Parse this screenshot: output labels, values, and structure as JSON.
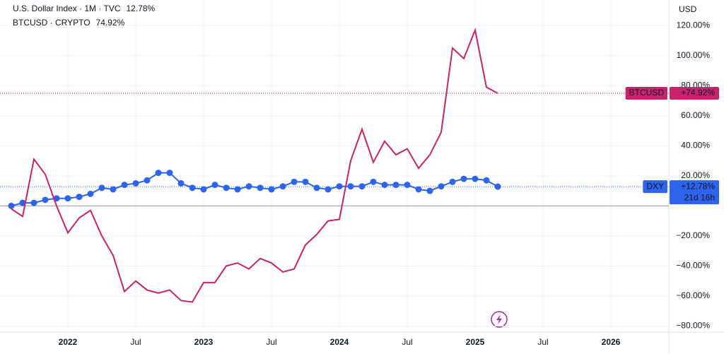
{
  "chart_data": {
    "type": "line",
    "currency": "USD",
    "categories": [
      null,
      null,
      null,
      null,
      null,
      "2022",
      null,
      null,
      null,
      null,
      null,
      "Jul",
      null,
      null,
      null,
      null,
      null,
      "2023",
      null,
      null,
      null,
      null,
      null,
      "Jul",
      null,
      null,
      null,
      null,
      null,
      "2024",
      null,
      null,
      null,
      null,
      null,
      "Jul",
      null,
      null,
      null,
      null,
      null,
      "2025",
      null,
      null,
      null,
      null,
      null,
      "Jul",
      null,
      null,
      null,
      null,
      null,
      "2026",
      null,
      null,
      null,
      null,
      null
    ],
    "ylim": [
      -84,
      137
    ],
    "yticks": [
      {
        "value": 120,
        "label": "120.00%"
      },
      {
        "value": 100,
        "label": "100.00%"
      },
      {
        "value": 80,
        "label": "80.00%"
      },
      {
        "value": 60,
        "label": "60.00%"
      },
      {
        "value": 40,
        "label": "40.00%"
      },
      {
        "value": 20,
        "label": "20.00%"
      },
      {
        "value": -20,
        "label": "−20.00%"
      },
      {
        "value": -40,
        "label": "−40.00%"
      },
      {
        "value": -60,
        "label": "−60.00%"
      },
      {
        "value": -80,
        "label": "−80.00%"
      }
    ],
    "grid": true,
    "series": [
      {
        "name": "U.S. Dollar Index · 1M · TVC",
        "tag": "DXY",
        "legend_value": "12.78%",
        "countdown": "21d 16h",
        "color": "#2e63eb",
        "markers": true,
        "values": [
          0,
          2,
          2,
          4,
          5,
          5,
          6,
          8,
          12,
          11,
          14,
          15,
          17,
          22,
          22,
          15,
          12,
          11,
          14,
          12,
          11,
          13,
          12,
          11,
          13,
          16,
          16,
          12,
          11,
          13,
          13,
          13,
          16,
          14,
          14,
          14,
          11,
          10,
          13,
          16,
          18,
          18,
          17,
          12.78,
          null,
          null,
          null,
          null,
          null,
          null,
          null,
          null,
          null,
          null,
          null,
          null,
          null,
          null,
          null
        ],
        "value_labels": [
          null,
          null,
          null,
          null,
          null,
          null,
          null,
          null,
          null,
          null,
          null,
          null,
          null,
          null,
          null,
          null,
          null,
          null,
          null,
          null,
          null,
          null,
          null,
          null,
          null,
          null,
          null,
          null,
          null,
          null,
          null,
          null,
          null,
          null,
          null,
          null,
          null,
          null,
          null,
          null,
          null,
          null,
          null,
          "+12.78%",
          null,
          null,
          null,
          null,
          null,
          null,
          null,
          null,
          null,
          null,
          null,
          null,
          null,
          null,
          null
        ]
      },
      {
        "name": "BTCUSD · CRYPTO",
        "tag": "BTCUSD",
        "legend_value": "74.92%",
        "color": "#c8236a",
        "markers": false,
        "values": [
          -2,
          -7,
          31,
          21,
          0,
          -18,
          -8,
          -3,
          -20,
          -33,
          -57,
          -50,
          -56,
          -58,
          -56,
          -63,
          -64,
          -51,
          -51,
          -40,
          -38,
          -42,
          -35,
          -38,
          -44,
          -42,
          -26,
          -19,
          -10,
          -9,
          30,
          51,
          29,
          43,
          34,
          38,
          25,
          34,
          49,
          105,
          98,
          117,
          79,
          74.92,
          null,
          null,
          null,
          null,
          null,
          null,
          null,
          null,
          null,
          null,
          null,
          null,
          null,
          null,
          null
        ],
        "value_labels": [
          null,
          null,
          null,
          null,
          null,
          null,
          null,
          null,
          null,
          null,
          null,
          null,
          null,
          null,
          null,
          null,
          null,
          null,
          null,
          null,
          null,
          null,
          null,
          null,
          null,
          null,
          null,
          null,
          null,
          null,
          null,
          null,
          null,
          null,
          null,
          null,
          null,
          null,
          null,
          null,
          null,
          null,
          null,
          "+74.92%",
          null,
          null,
          null,
          null,
          null,
          null,
          null,
          null,
          null,
          null,
          null,
          null,
          null,
          null,
          null
        ]
      }
    ]
  }
}
